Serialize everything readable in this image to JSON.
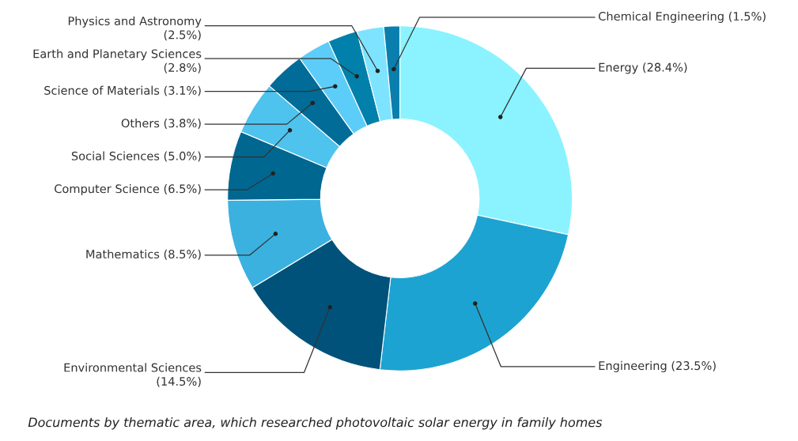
{
  "chart_data": {
    "type": "donut",
    "categories": [
      "Energy",
      "Engineering",
      "Environmental Sciences",
      "Mathematics",
      "Computer Science",
      "Social Sciences",
      "Others",
      "Science of Materials",
      "Earth and Planetary Sciences",
      "Physics and Astronomy",
      "Chemical Engineering"
    ],
    "values": [
      28.4,
      23.5,
      14.5,
      8.5,
      6.5,
      5.0,
      3.8,
      3.1,
      2.8,
      2.5,
      1.5
    ],
    "value_labels": [
      "(28.4%)",
      "(23.5%)",
      "(14.5%)",
      "(8.5%)",
      "(6.5%)",
      "(5.0%)",
      "(3.8%)",
      "(3.1%)",
      "(2.8%)",
      "(2.5%)",
      "(1.5%)"
    ],
    "colors": [
      "#8af3ff",
      "#1ca3d1",
      "#00527a",
      "#3bb1e0",
      "#006791",
      "#4ec3ee",
      "#006c97",
      "#5ccdf8",
      "#0080aa",
      "#7ee3ff",
      "#0a7fae"
    ],
    "legend": false,
    "annotations": [
      "Documents by thematic area, which researched photovoltaic solar energy in family homes"
    ]
  }
}
